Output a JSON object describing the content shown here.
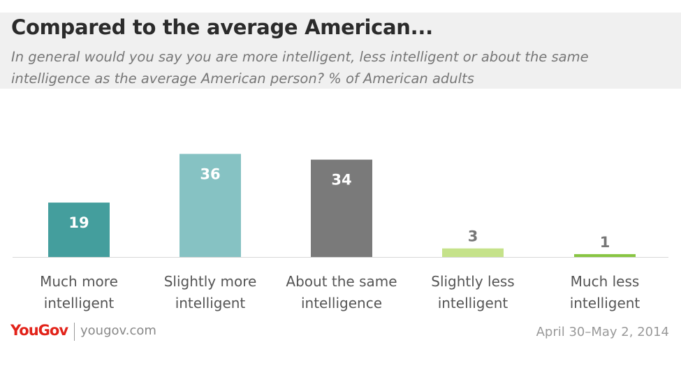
{
  "header": {
    "title": "Compared to the average American...",
    "subtitle": "In general would you say you are more intelligent, less intelligent or about the same intelligence as the average American person? % of American adults"
  },
  "chart_data": {
    "type": "bar",
    "categories": [
      [
        "Much more",
        "intelligent"
      ],
      [
        "Slightly more",
        "intelligent"
      ],
      [
        "About the same",
        "intelligence"
      ],
      [
        "Slightly less",
        "intelligent"
      ],
      [
        "Much less",
        "intelligent"
      ]
    ],
    "values": [
      19,
      36,
      34,
      3,
      1
    ],
    "colors": [
      "#449e9d",
      "#86c2c3",
      "#7a7a7a",
      "#c5e28a",
      "#88c542"
    ],
    "label_colors": [
      "#ffffff",
      "#ffffff",
      "#ffffff",
      "#777777",
      "#777777"
    ],
    "ylim": [
      0,
      38
    ],
    "grid": false,
    "legend": "none"
  },
  "footer": {
    "brand": "YouGov",
    "site": "yougov.com",
    "date": "April 30–May 2, 2014"
  }
}
